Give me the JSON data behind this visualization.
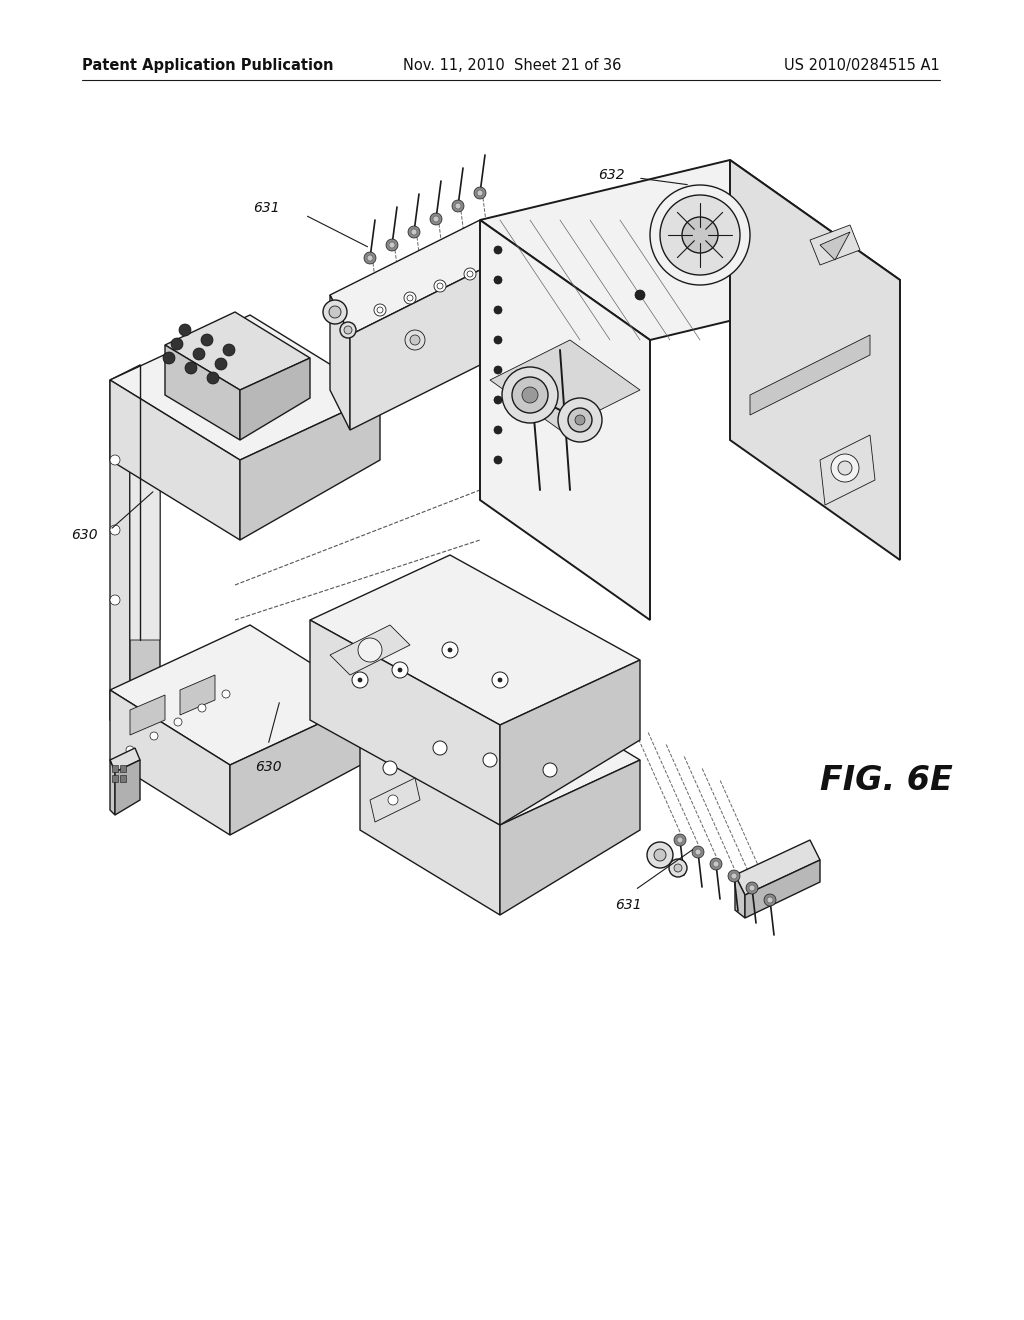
{
  "background_color": "#ffffff",
  "header_left": "Patent Application Publication",
  "header_center": "Nov. 11, 2010  Sheet 21 of 36",
  "header_right": "US 2010/0284515 A1",
  "header_fontsize": 10.5,
  "fig_label": "FIG. 6E",
  "fig_label_fontsize": 24,
  "line_color": "#1a1a1a",
  "face_white": "#ffffff",
  "face_light": "#f2f2f2",
  "face_mid": "#e0e0e0",
  "face_dark": "#c8c8c8",
  "lw_main": 1.0,
  "lw_thick": 1.4,
  "lw_thin": 0.6
}
